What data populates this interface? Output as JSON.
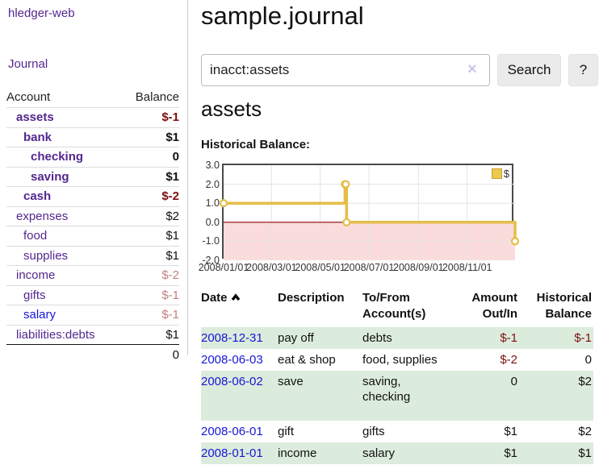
{
  "app": {
    "brand": "hledger-web"
  },
  "sidebar": {
    "journal_link": "Journal",
    "header": {
      "account": "Account",
      "balance": "Balance"
    },
    "accounts": [
      {
        "name": "assets",
        "balance": "$-1"
      },
      {
        "name": "bank",
        "balance": "$1"
      },
      {
        "name": "checking",
        "balance": "0"
      },
      {
        "name": "saving",
        "balance": "$1"
      },
      {
        "name": "cash",
        "balance": "$-2"
      },
      {
        "name": "expenses",
        "balance": "$2"
      },
      {
        "name": "food",
        "balance": "$1"
      },
      {
        "name": "supplies",
        "balance": "$1"
      },
      {
        "name": "income",
        "balance": "$-2"
      },
      {
        "name": "gifts",
        "balance": "$-1"
      },
      {
        "name": "salary",
        "balance": "$-1"
      },
      {
        "name": "liabilities:debts",
        "balance": "$1"
      }
    ],
    "total": "0"
  },
  "main": {
    "title": "sample.journal",
    "search": {
      "value": "inacct:assets",
      "clear": "×",
      "button": "Search",
      "help": "?"
    },
    "heading": "assets",
    "chart_title": "Historical Balance:"
  },
  "register": {
    "headers": {
      "date": "Date",
      "description": "Description",
      "tofrom1": "To/From",
      "tofrom2": "Account(s)",
      "amount1": "Amount",
      "amount2": "Out/In",
      "hist1": "Historical",
      "hist2": "Balance"
    },
    "rows": [
      {
        "date": "2008-12-31",
        "description": "pay off",
        "tofrom": "debts",
        "tofrom2": "",
        "amount": "$-1",
        "balance": "$-1"
      },
      {
        "date": "2008-06-03",
        "description": "eat & shop",
        "tofrom": "food, supplies",
        "tofrom2": "",
        "amount": "$-2",
        "balance": "0"
      },
      {
        "date": "2008-06-02",
        "description": "save",
        "tofrom": "saving,",
        "tofrom2": "checking",
        "amount": "0",
        "balance": "$2"
      },
      {
        "date": "2008-06-01",
        "description": "gift",
        "tofrom": "gifts",
        "tofrom2": "",
        "amount": "$1",
        "balance": "$2"
      },
      {
        "date": "2008-01-01",
        "description": "income",
        "tofrom": "salary",
        "tofrom2": "",
        "amount": "$1",
        "balance": "$1"
      }
    ]
  },
  "chart_data": {
    "type": "line",
    "title": "Historical Balance:",
    "step": true,
    "series": [
      {
        "name": "$",
        "points": [
          {
            "date": "2008-01-01",
            "value": 1
          },
          {
            "date": "2008-06-01",
            "value": 2
          },
          {
            "date": "2008-06-02",
            "value": 2
          },
          {
            "date": "2008-06-03",
            "value": 0
          },
          {
            "date": "2008-12-31",
            "value": -1
          }
        ]
      }
    ],
    "xrange": [
      "2008-01-01",
      "2008-12-31"
    ],
    "ylim": [
      -2,
      3
    ],
    "y_ticks": [
      {
        "value": 3,
        "label": "3.0"
      },
      {
        "value": 2,
        "label": "2.0"
      },
      {
        "value": 1,
        "label": "1.0"
      },
      {
        "value": 0,
        "label": "0.0"
      },
      {
        "value": -1,
        "label": "-1.0"
      },
      {
        "value": -2,
        "label": "-2.0"
      }
    ],
    "x_ticks": [
      {
        "date": "2008-01-01",
        "label": "2008/01/01"
      },
      {
        "date": "2008-03-01",
        "label": "2008/03/01"
      },
      {
        "date": "2008-05-01",
        "label": "2008/05/01"
      },
      {
        "date": "2008-07-01",
        "label": "2008/07/01"
      },
      {
        "date": "2008-09-01",
        "label": "2008/09/01"
      },
      {
        "date": "2008-11-01",
        "label": "2008/11/01"
      }
    ],
    "legend": {
      "label": "$",
      "position": "top-right"
    },
    "colors": {
      "line": "#e5bd49",
      "marker_fill": "#ffffff",
      "negative_region": "#fbdcdc",
      "zero_line": "#8b0000",
      "grid": "#e3e3e3",
      "border": "#4a4a4a"
    }
  }
}
